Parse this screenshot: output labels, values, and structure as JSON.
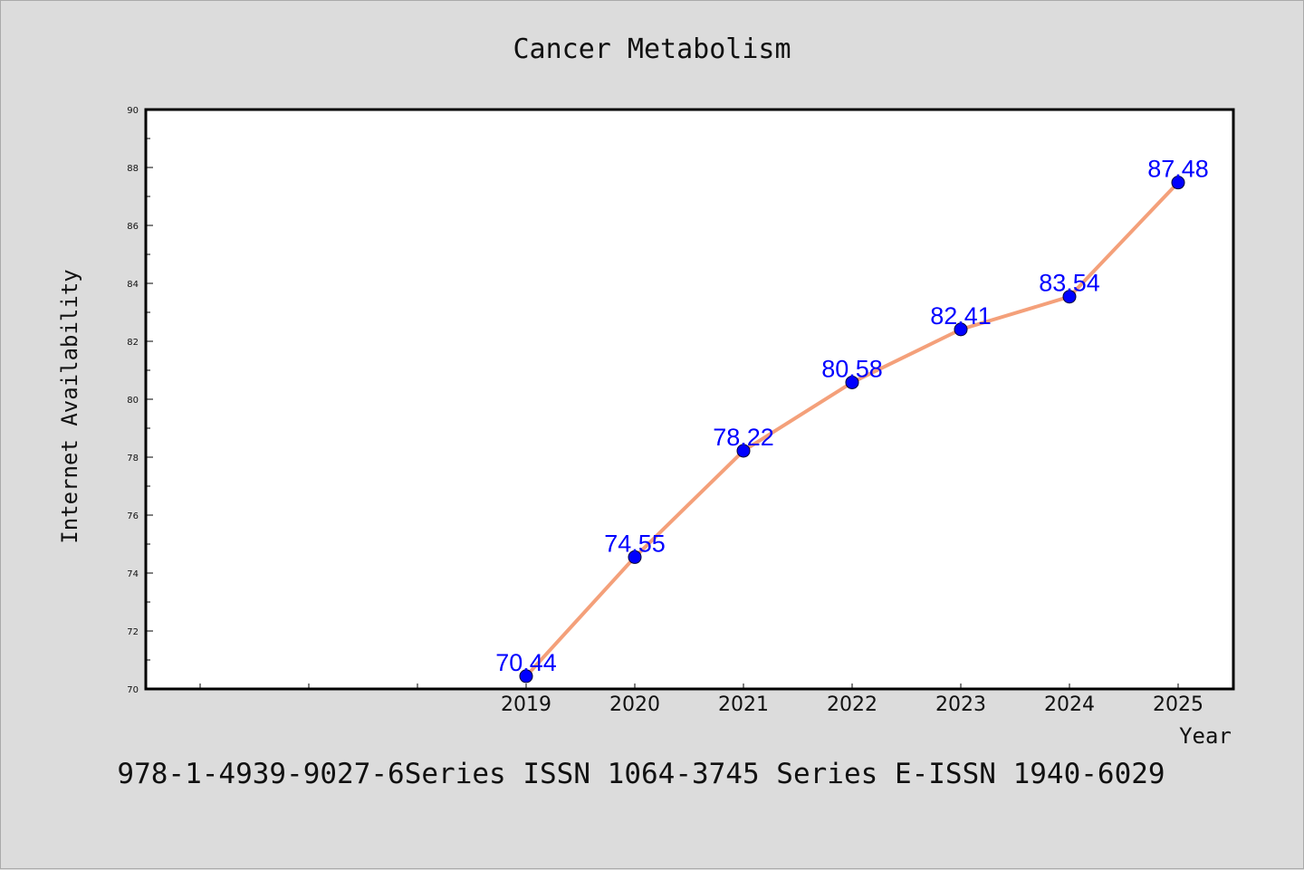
{
  "chart_data": {
    "type": "line",
    "title": "Cancer Metabolism",
    "xlabel": "Year",
    "ylabel": "Internet Availability",
    "categories": [
      "2019",
      "2020",
      "2021",
      "2022",
      "2023",
      "2024",
      "2025"
    ],
    "series": [
      {
        "values": [
          70.44,
          74.55,
          78.22,
          80.58,
          82.41,
          83.54,
          87.48
        ],
        "labels": [
          "70.44",
          "74.55",
          "78.22",
          "80.58",
          "82.41",
          "83.54",
          "87.48"
        ]
      }
    ],
    "yticks": [
      "70",
      "72",
      "74",
      "76",
      "78",
      "80",
      "82",
      "84",
      "86",
      "88",
      "90"
    ],
    "ylim": [
      70,
      90
    ],
    "grid": false,
    "legend": "none",
    "colors": {
      "line": "#f4a07a",
      "marker": "#0000ff",
      "label": "#0000ff"
    }
  },
  "footer": {
    "text": "978-1-4939-9027-6Series ISSN 1064-3745 Series E-ISSN 1940-6029"
  }
}
